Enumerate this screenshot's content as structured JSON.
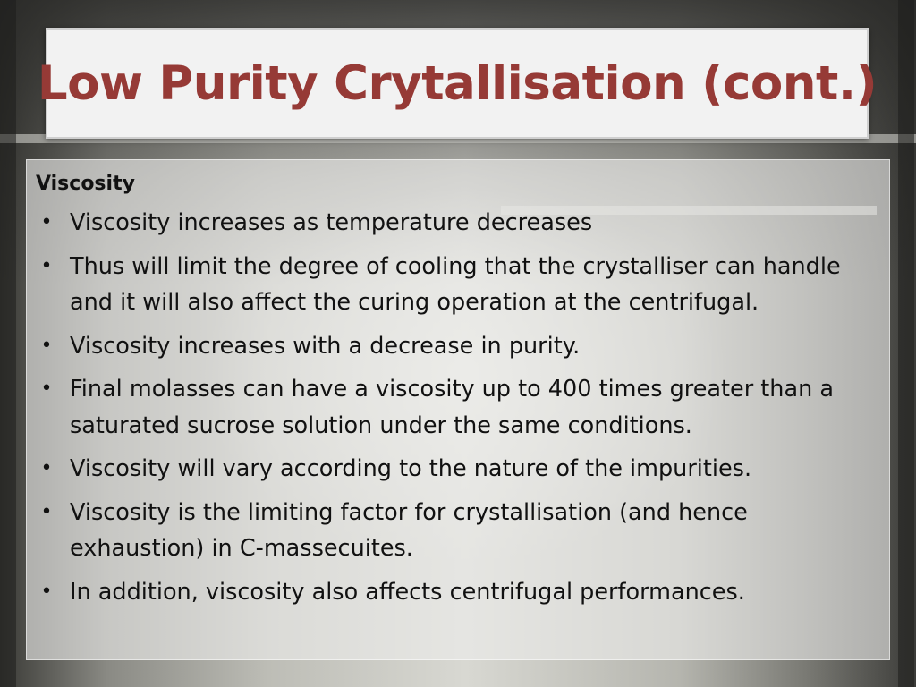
{
  "slide": {
    "title": "Low Purity Crytallisation (cont.)",
    "section_heading": "Viscosity",
    "bullet_glyph": "•",
    "bullets": [
      "Viscosity increases as temperature decreases",
      "Thus will limit the degree of cooling that the crystalliser can handle and it will also affect the curing operation at the centrifugal.",
      "Viscosity increases with a decrease in purity.",
      "Final molasses can have a viscosity up to 400 times greater than a saturated sucrose solution under the same conditions.",
      "Viscosity will vary according to the nature of the impurities.",
      "Viscosity is the limiting factor for crystallisation (and hence exhaustion) in C-massecuites.",
      "In addition, viscosity also affects centrifugal performances."
    ]
  },
  "colors": {
    "title_text": "#963a36",
    "title_background": "#f2f2f2",
    "body_text": "#111111"
  }
}
